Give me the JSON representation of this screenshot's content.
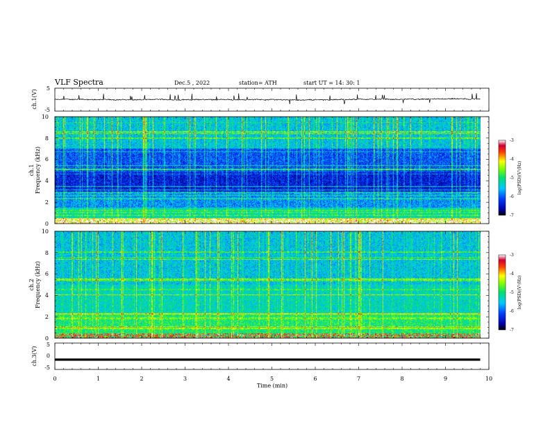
{
  "header": {
    "title": "VLF  Spectra",
    "date": "Dec.5  , 2022",
    "station": "station= ATH",
    "start": "start  UT  =    14: 30: 1"
  },
  "chart_data": [
    {
      "type": "line",
      "id": "ch1-waveform",
      "ylabel": "ch.1(V)",
      "ylim": [
        -5,
        5
      ],
      "yticks": [
        "5",
        "-5"
      ],
      "description_values": {
        "baseline_v": 0,
        "typical_noise_v": 0.4,
        "max_spike_v": 2.6
      }
    },
    {
      "type": "heatmap",
      "id": "ch1-spectrogram",
      "ylabel_channel": "ch.1",
      "ylabel": "Frequency  (kHz)",
      "ylim": [
        0,
        10
      ],
      "yticks": [
        "0",
        "2",
        "4",
        "6",
        "8",
        "10"
      ],
      "colorbar": {
        "label": "log(PSD)(V²/Hz)",
        "range": [
          -7,
          -3
        ],
        "ticks": [
          "-3",
          "-4",
          "-5",
          "-6",
          "-7"
        ]
      },
      "band_structure_log_psd": [
        {
          "f_khz": [
            0.0,
            0.5
          ],
          "level": -4.3
        },
        {
          "f_khz": [
            0.5,
            1.5
          ],
          "level": -5.3
        },
        {
          "f_khz": [
            1.5,
            3.0
          ],
          "level": -5.8
        },
        {
          "f_khz": [
            3.0,
            4.8
          ],
          "level": -6.4
        },
        {
          "f_khz": [
            4.8,
            7.0
          ],
          "level": -6.1
        },
        {
          "f_khz": [
            7.0,
            10.0
          ],
          "level": -5.5
        }
      ]
    },
    {
      "type": "heatmap",
      "id": "ch2-spectrogram",
      "ylabel_channel": "ch.2",
      "ylabel": "Frequency  (kHz)",
      "ylim": [
        0,
        10
      ],
      "yticks": [
        "0",
        "2",
        "4",
        "6",
        "8",
        "10"
      ],
      "colorbar": {
        "label": "log(PSD)(V²/Hz)",
        "range": [
          -7,
          -3
        ],
        "ticks": [
          "-3",
          "-4",
          "-5",
          "-6",
          "-7"
        ]
      },
      "band_structure_log_psd": [
        {
          "f_khz": [
            0.0,
            2.2
          ],
          "level": -5.0
        },
        {
          "f_khz": [
            2.2,
            5.0
          ],
          "level": -5.3
        },
        {
          "f_khz": [
            5.0,
            10.0
          ],
          "level": -5.5
        }
      ]
    },
    {
      "type": "line",
      "id": "ch3-waveform",
      "ylabel": "ch.3(V)",
      "ylim": [
        -5,
        5
      ],
      "yticks": [
        "5",
        "0",
        "-5"
      ],
      "description_values": {
        "baseline_v": -1.3
      }
    }
  ],
  "xaxis": {
    "label": "Time  (min)",
    "range": [
      0,
      10
    ],
    "ticks": [
      "0",
      "1",
      "2",
      "3",
      "4",
      "5",
      "6",
      "7",
      "8",
      "9",
      "10"
    ],
    "data_end_min": 9.8
  }
}
